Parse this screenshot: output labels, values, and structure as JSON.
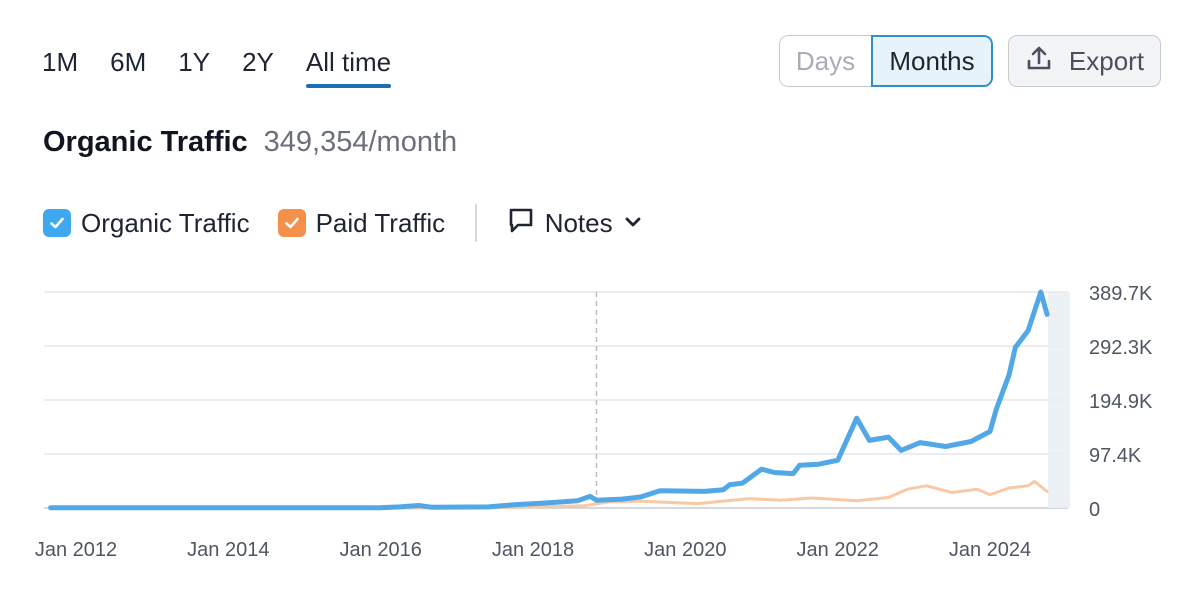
{
  "range_tabs": [
    "1M",
    "6M",
    "1Y",
    "2Y",
    "All time"
  ],
  "active_range": "All time",
  "granularity": {
    "days_label": "Days",
    "months_label": "Months",
    "selected": "Months"
  },
  "export_label": "Export",
  "header": {
    "title": "Organic Traffic",
    "value": "349,354/month"
  },
  "legend": {
    "organic_label": "Organic Traffic",
    "paid_label": "Paid Traffic",
    "notes_label": "Notes"
  },
  "colors": {
    "organic": "#52a8e6",
    "paid": "#f9c9a6",
    "organic_checkbox": "#3fa9ef",
    "paid_checkbox": "#f4904a",
    "accent": "#1a6fb5"
  },
  "chart_data": {
    "type": "line",
    "x_ticks": [
      "Jan 2012",
      "Jan 2014",
      "Jan 2016",
      "Jan 2018",
      "Jan 2020",
      "Jan 2022",
      "Jan 2024"
    ],
    "y_ticks": [
      "389.7K",
      "292.3K",
      "194.9K",
      "97.4K",
      "0"
    ],
    "ylim": [
      0,
      389700
    ],
    "xlim": [
      "2011-09",
      "2024-10"
    ],
    "grid": true,
    "marker_line": "2018-11",
    "series": [
      {
        "name": "Organic Traffic",
        "points": [
          [
            "2011-09",
            500
          ],
          [
            "2013-01",
            500
          ],
          [
            "2014-06",
            500
          ],
          [
            "2016-01",
            600
          ],
          [
            "2016-04",
            2000
          ],
          [
            "2016-07",
            4500
          ],
          [
            "2016-09",
            1500
          ],
          [
            "2017-06",
            2000
          ],
          [
            "2017-10",
            6000
          ],
          [
            "2018-03",
            9000
          ],
          [
            "2018-08",
            13000
          ],
          [
            "2018-10",
            21000
          ],
          [
            "2018-11",
            14000
          ],
          [
            "2019-03",
            16000
          ],
          [
            "2019-06",
            20000
          ],
          [
            "2019-09",
            31000
          ],
          [
            "2020-04",
            30000
          ],
          [
            "2020-07",
            33000
          ],
          [
            "2020-08",
            42000
          ],
          [
            "2020-10",
            45000
          ],
          [
            "2021-01",
            70000
          ],
          [
            "2021-03",
            64000
          ],
          [
            "2021-06",
            62000
          ],
          [
            "2021-07",
            77000
          ],
          [
            "2021-10",
            79000
          ],
          [
            "2022-01",
            86000
          ],
          [
            "2022-04",
            162000
          ],
          [
            "2022-06",
            122000
          ],
          [
            "2022-09",
            128000
          ],
          [
            "2022-11",
            104000
          ],
          [
            "2023-02",
            118000
          ],
          [
            "2023-06",
            111000
          ],
          [
            "2023-10",
            120000
          ],
          [
            "2024-01",
            138000
          ],
          [
            "2024-02",
            178000
          ],
          [
            "2024-04",
            240000
          ],
          [
            "2024-05",
            290000
          ],
          [
            "2024-07",
            320000
          ],
          [
            "2024-09",
            389700
          ],
          [
            "2024-10",
            349354
          ]
        ]
      },
      {
        "name": "Paid Traffic",
        "points": [
          [
            "2011-09",
            0
          ],
          [
            "2015-06",
            0
          ],
          [
            "2017-05",
            200
          ],
          [
            "2018-02",
            2000
          ],
          [
            "2018-09",
            4000
          ],
          [
            "2019-01",
            11000
          ],
          [
            "2019-06",
            12000
          ],
          [
            "2020-03",
            8000
          ],
          [
            "2020-11",
            17000
          ],
          [
            "2021-04",
            14000
          ],
          [
            "2021-09",
            18000
          ],
          [
            "2022-04",
            13000
          ],
          [
            "2022-09",
            19000
          ],
          [
            "2022-12",
            34000
          ],
          [
            "2023-03",
            40000
          ],
          [
            "2023-07",
            28000
          ],
          [
            "2023-11",
            34000
          ],
          [
            "2024-01",
            24000
          ],
          [
            "2024-04",
            36000
          ],
          [
            "2024-07",
            40000
          ],
          [
            "2024-08",
            48000
          ],
          [
            "2024-10",
            30000
          ]
        ]
      }
    ]
  }
}
